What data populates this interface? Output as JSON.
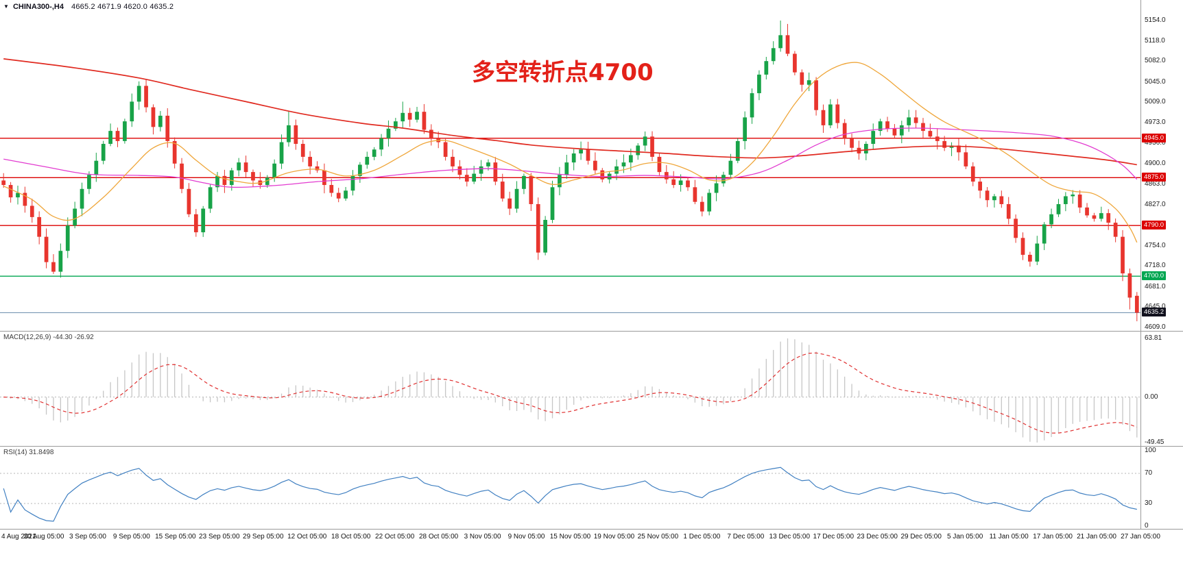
{
  "chart": {
    "symbol_label": "CHINA300-,H4",
    "ohlc_label": "4665.2 4671.9 4620.0 4635.2",
    "annotation": {
      "text": "多空转折点4700",
      "color": "#e32119"
    },
    "colors": {
      "background": "#ffffff",
      "candle_up": "#18a348",
      "candle_down": "#e8352e",
      "separator": "#9a9a9a",
      "dotted": "#b4b4b4",
      "macd_hist": "#c6c6c6",
      "macd_signal": "#e03030",
      "rsi_line": "#3f7fc1",
      "current_price_line": "#6d8fae",
      "badge_dark": "#12121e",
      "text": "#1a1a1a"
    }
  },
  "chart_data": {
    "type": "candlestick",
    "symbol": "CHINA300-",
    "timeframe": "H4",
    "title": "CHINA300-,H4 4665.2 4671.9 4620.0 4635.2",
    "x_labels": [
      "4 Aug 2021",
      "30 Aug 05:00",
      "3 Sep 05:00",
      "9 Sep 05:00",
      "15 Sep 05:00",
      "23 Sep 05:00",
      "29 Sep 05:00",
      "12 Oct 05:00",
      "18 Oct 05:00",
      "22 Oct 05:00",
      "28 Oct 05:00",
      "3 Nov 05:00",
      "9 Nov 05:00",
      "15 Nov 05:00",
      "19 Nov 05:00",
      "25 Nov 05:00",
      "1 Dec 05:00",
      "7 Dec 05:00",
      "13 Dec 05:00",
      "17 Dec 05:00",
      "23 Dec 05:00",
      "29 Dec 05:00",
      "5 Jan 05:00",
      "11 Jan 05:00",
      "17 Jan 05:00",
      "21 Jan 05:00",
      "27 Jan 05:00"
    ],
    "y_ticks": [
      "5154.0",
      "5118.0",
      "5082.0",
      "5045.0",
      "5009.0",
      "4973.0",
      "4936.0",
      "4900.0",
      "4863.0",
      "4827.0",
      "4790.0",
      "4754.0",
      "4718.0",
      "4681.0",
      "4645.0",
      "4609.0"
    ],
    "price_range": {
      "min": 4609.0,
      "max": 5154.0
    },
    "closes": [
      4862,
      4840,
      4848,
      4825,
      4805,
      4770,
      4725,
      4708,
      4745,
      4790,
      4820,
      4855,
      4880,
      4905,
      4935,
      4958,
      4940,
      4975,
      5010,
      5038,
      5000,
      4965,
      4985,
      4940,
      4900,
      4855,
      4810,
      4778,
      4820,
      4858,
      4878,
      4862,
      4888,
      4902,
      4885,
      4870,
      4862,
      4875,
      4900,
      4938,
      4968,
      4935,
      4912,
      4895,
      4888,
      4862,
      4848,
      4838,
      4852,
      4878,
      4898,
      4912,
      4925,
      4945,
      4962,
      4975,
      4990,
      4978,
      4992,
      4960,
      4945,
      4938,
      4912,
      4895,
      4880,
      4868,
      4882,
      4895,
      4902,
      4868,
      4838,
      4820,
      4855,
      4878,
      4828,
      4742,
      4800,
      4858,
      4880,
      4902,
      4918,
      4925,
      4905,
      4888,
      4872,
      4882,
      4895,
      4902,
      4915,
      4932,
      4948,
      4912,
      4885,
      4872,
      4862,
      4870,
      4858,
      4832,
      4815,
      4848,
      4865,
      4880,
      4905,
      4940,
      4982,
      5025,
      5058,
      5082,
      5105,
      5128,
      5095,
      5062,
      5040,
      5048,
      4995,
      4968,
      5005,
      4972,
      4945,
      4928,
      4918,
      4935,
      4958,
      4975,
      4962,
      4950,
      4968,
      4982,
      4972,
      4958,
      4948,
      4940,
      4928,
      4932,
      4920,
      4895,
      4868,
      4852,
      4835,
      4842,
      4828,
      4802,
      4768,
      4738,
      4726,
      4758,
      4792,
      4810,
      4828,
      4842,
      4845,
      4822,
      4808,
      4802,
      4812,
      4795,
      4770,
      4705,
      4662,
      4635.2
    ],
    "wick_overrides": {
      "7": {
        "low": 4704
      },
      "19": {
        "high": 5046
      },
      "27": {
        "low": 4770
      },
      "40": {
        "high": 4993
      },
      "56": {
        "high": 5010
      },
      "75": {
        "low": 4729
      },
      "90": {
        "high": 4957
      },
      "109": {
        "high": 5154
      },
      "110": {
        "high": 5148
      },
      "144": {
        "low": 4717
      },
      "158": {
        "low": 4641
      }
    },
    "last_candle": {
      "open": 4665.2,
      "high": 4671.9,
      "low": 4620.0,
      "close": 4635.2
    },
    "hlines": [
      {
        "price": 4945.0,
        "label": "4945.0",
        "color": "#dc0000"
      },
      {
        "price": 4875.0,
        "label": "4875.0",
        "color": "#dc0000"
      },
      {
        "price": 4790.0,
        "label": "4790.0",
        "color": "#dc0000"
      },
      {
        "price": 4700.0,
        "label": "4700.0",
        "color": "#00a651"
      }
    ],
    "current_price": {
      "value": 4635.2,
      "label": "4635.2"
    },
    "overlays": {
      "ma_red": {
        "color": "#e02a20",
        "points": [
          [
            0,
            5086
          ],
          [
            10,
            5070
          ],
          [
            19,
            5052
          ],
          [
            26,
            5032
          ],
          [
            34,
            5010
          ],
          [
            42,
            4988
          ],
          [
            50,
            4972
          ],
          [
            56,
            4963
          ],
          [
            63,
            4950
          ],
          [
            69,
            4941
          ],
          [
            74,
            4933
          ],
          [
            80,
            4927
          ],
          [
            87,
            4922
          ],
          [
            93,
            4918
          ],
          [
            99,
            4913
          ],
          [
            106,
            4910
          ],
          [
            112,
            4914
          ],
          [
            118,
            4921
          ],
          [
            125,
            4928
          ],
          [
            131,
            4931
          ],
          [
            137,
            4929
          ],
          [
            144,
            4921
          ],
          [
            150,
            4913
          ],
          [
            155,
            4906
          ],
          [
            159,
            4898
          ]
        ]
      },
      "ma_magenta": {
        "color": "#e23bd0",
        "points": [
          [
            0,
            4908
          ],
          [
            6,
            4894
          ],
          [
            12,
            4881
          ],
          [
            19,
            4879
          ],
          [
            24,
            4876
          ],
          [
            28,
            4866
          ],
          [
            32,
            4858
          ],
          [
            38,
            4861
          ],
          [
            44,
            4868
          ],
          [
            50,
            4873
          ],
          [
            56,
            4881
          ],
          [
            62,
            4888
          ],
          [
            68,
            4891
          ],
          [
            73,
            4887
          ],
          [
            78,
            4881
          ],
          [
            84,
            4877
          ],
          [
            90,
            4879
          ],
          [
            96,
            4876
          ],
          [
            101,
            4873
          ],
          [
            106,
            4884
          ],
          [
            110,
            4906
          ],
          [
            114,
            4933
          ],
          [
            118,
            4952
          ],
          [
            123,
            4961
          ],
          [
            128,
            4963
          ],
          [
            133,
            4961
          ],
          [
            138,
            4958
          ],
          [
            143,
            4954
          ],
          [
            147,
            4949
          ],
          [
            151,
            4937
          ],
          [
            154,
            4921
          ],
          [
            157,
            4897
          ],
          [
            159,
            4872
          ]
        ]
      },
      "ma_orange": {
        "color": "#efa63a",
        "points": [
          [
            0,
            4860
          ],
          [
            4,
            4836
          ],
          [
            7,
            4806
          ],
          [
            10,
            4802
          ],
          [
            14,
            4840
          ],
          [
            18,
            4892
          ],
          [
            21,
            4928
          ],
          [
            24,
            4936
          ],
          [
            27,
            4906
          ],
          [
            30,
            4878
          ],
          [
            33,
            4868
          ],
          [
            36,
            4866
          ],
          [
            40,
            4884
          ],
          [
            44,
            4890
          ],
          [
            48,
            4878
          ],
          [
            52,
            4888
          ],
          [
            56,
            4915
          ],
          [
            59,
            4936
          ],
          [
            62,
            4941
          ],
          [
            65,
            4929
          ],
          [
            68,
            4915
          ],
          [
            71,
            4899
          ],
          [
            74,
            4879
          ],
          [
            77,
            4863
          ],
          [
            80,
            4871
          ],
          [
            84,
            4884
          ],
          [
            87,
            4889
          ],
          [
            90,
            4900
          ],
          [
            93,
            4901
          ],
          [
            96,
            4889
          ],
          [
            99,
            4871
          ],
          [
            102,
            4873
          ],
          [
            105,
            4901
          ],
          [
            108,
            4949
          ],
          [
            111,
            5006
          ],
          [
            114,
            5049
          ],
          [
            117,
            5073
          ],
          [
            120,
            5079
          ],
          [
            123,
            5059
          ],
          [
            126,
            5029
          ],
          [
            129,
            4999
          ],
          [
            132,
            4974
          ],
          [
            135,
            4956
          ],
          [
            138,
            4938
          ],
          [
            141,
            4915
          ],
          [
            144,
            4887
          ],
          [
            147,
            4862
          ],
          [
            150,
            4851
          ],
          [
            153,
            4846
          ],
          [
            156,
            4820
          ],
          [
            158,
            4786
          ],
          [
            159,
            4760
          ]
        ]
      }
    },
    "macd": {
      "label": "MACD(12,26,9) -44.30 -26.92",
      "params": [
        12,
        26,
        9
      ],
      "value": -44.3,
      "signal_value": -26.92,
      "ticks": [
        "63.81",
        "0.00",
        "-49.45"
      ],
      "range": {
        "min": -49.45,
        "max": 63.81
      }
    },
    "rsi": {
      "label": "RSI(14) 31.8498",
      "period": 14,
      "value": 31.8498,
      "ticks": [
        "100",
        "70",
        "30",
        "0"
      ],
      "levels": [
        70,
        30
      ],
      "range": {
        "min": 0,
        "max": 100
      }
    }
  }
}
